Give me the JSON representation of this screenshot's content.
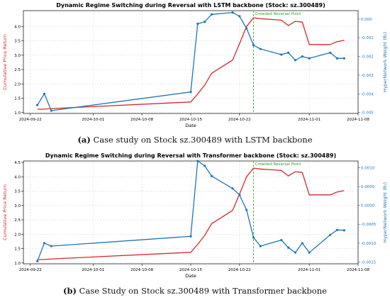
{
  "chart_data": [
    {
      "type": "line",
      "title": "Dynamic Regime Switching during Reversal with LSTM backbone (Stock: sz.300489)",
      "xlabel": "Date",
      "ylabel": "Cumulative Price Return",
      "y2label": "HyperNetwork Weight (θ₁)",
      "xlim": [
        "2024-09-21",
        "2024-11-08"
      ],
      "ylim": [
        0.97,
        4.55
      ],
      "y2lim": [
        -0.00505,
        0.00045
      ],
      "xticks": [
        "2024-09-22",
        "2024-10-01",
        "2024-10-08",
        "2024-10-15",
        "2024-10-22",
        "2024-11-01",
        "2024-11-08"
      ],
      "yticks": [
        "1.0",
        "1.5",
        "2.0",
        "2.5",
        "3.0",
        "3.5",
        "4.0"
      ],
      "y2ticks": [
        "0.000",
        "-0.001",
        "-0.002",
        "-0.003",
        "-0.004",
        "-0.005"
      ],
      "annotation": "Crowded Reversal Point",
      "annotation_x": "2024-10-24",
      "grid": true,
      "series": [
        {
          "axis": "left",
          "color": "#d62728",
          "x": [
            "2024-09-23",
            "2024-09-24",
            "2024-09-25",
            "2024-10-15",
            "2024-10-16",
            "2024-10-17",
            "2024-10-18",
            "2024-10-21",
            "2024-10-22",
            "2024-10-23",
            "2024-10-24",
            "2024-10-25",
            "2024-10-28",
            "2024-10-29",
            "2024-10-30",
            "2024-10-31",
            "2024-11-01",
            "2024-11-04",
            "2024-11-05",
            "2024-11-06"
          ],
          "values": [
            1.12,
            1.12,
            1.14,
            1.37,
            1.65,
            1.96,
            2.37,
            2.83,
            3.4,
            4.0,
            4.3,
            4.27,
            4.22,
            4.03,
            4.18,
            4.15,
            3.37,
            3.37,
            3.47,
            3.52
          ]
        },
        {
          "axis": "right",
          "color": "#1f77b4",
          "markers": true,
          "x": [
            "2024-09-23",
            "2024-09-24",
            "2024-09-25",
            "2024-10-15",
            "2024-10-16",
            "2024-10-17",
            "2024-10-18",
            "2024-10-21",
            "2024-10-22",
            "2024-10-23",
            "2024-10-24",
            "2024-10-25",
            "2024-10-28",
            "2024-10-29",
            "2024-10-30",
            "2024-10-31",
            "2024-11-01",
            "2024-11-04",
            "2024-11-05",
            "2024-11-06"
          ],
          "values": [
            -0.0046,
            -0.004,
            -0.0049,
            -0.0039,
            -0.00025,
            -0.00015,
            0.00025,
            0.00035,
            0.00015,
            -0.0005,
            -0.0014,
            -0.0016,
            -0.0019,
            -0.0018,
            -0.0022,
            -0.002,
            -0.0021,
            -0.0018,
            -0.0021,
            -0.0021
          ]
        }
      ]
    },
    {
      "type": "line",
      "title": "Dynamic Regime Switching during Reversal with Transformer backbone (Stock: sz.300489)",
      "xlabel": "Date",
      "ylabel": "Cumulative Price Return",
      "y2label": "HyperNetwork Weight (θ₁)",
      "xlim": [
        "2024-09-21",
        "2024-11-08"
      ],
      "ylim": [
        0.97,
        4.55
      ],
      "y2lim": [
        -0.00155,
        0.00118
      ],
      "xticks": [
        "2024-09-22",
        "2024-10-01",
        "2024-10-08",
        "2024-10-15",
        "2024-10-22",
        "2024-11-01",
        "2024-11-08"
      ],
      "yticks": [
        "1.0",
        "1.5",
        "2.0",
        "2.5",
        "3.0",
        "3.5",
        "4.0",
        "4.5"
      ],
      "y2ticks": [
        "0.0010",
        "0.0005",
        "0.0000",
        "-0.0005",
        "-0.0010",
        "-0.0015"
      ],
      "annotation": "Crowded Reversal Point",
      "annotation_x": "2024-10-24",
      "grid": true,
      "series": [
        {
          "axis": "left",
          "color": "#d62728",
          "x": [
            "2024-09-23",
            "2024-09-24",
            "2024-09-25",
            "2024-10-15",
            "2024-10-16",
            "2024-10-17",
            "2024-10-18",
            "2024-10-21",
            "2024-10-22",
            "2024-10-23",
            "2024-10-24",
            "2024-10-25",
            "2024-10-28",
            "2024-10-29",
            "2024-10-30",
            "2024-10-31",
            "2024-11-01",
            "2024-11-04",
            "2024-11-05",
            "2024-11-06"
          ],
          "values": [
            1.12,
            1.12,
            1.14,
            1.37,
            1.65,
            1.96,
            2.37,
            2.83,
            3.4,
            4.0,
            4.3,
            4.27,
            4.22,
            4.03,
            4.18,
            4.15,
            3.37,
            3.37,
            3.47,
            3.52
          ]
        },
        {
          "axis": "right",
          "color": "#1f77b4",
          "markers": true,
          "x": [
            "2024-09-23",
            "2024-09-24",
            "2024-09-25",
            "2024-10-15",
            "2024-10-16",
            "2024-10-17",
            "2024-10-18",
            "2024-10-21",
            "2024-10-22",
            "2024-10-23",
            "2024-10-24",
            "2024-10-25",
            "2024-10-28",
            "2024-10-29",
            "2024-10-30",
            "2024-10-31",
            "2024-11-01",
            "2024-11-04",
            "2024-11-05",
            "2024-11-06"
          ],
          "values": [
            -0.00148,
            -0.001,
            -0.00108,
            -0.00082,
            0.00118,
            0.00105,
            0.00078,
            0.00045,
            0.00028,
            -0.00012,
            -0.00085,
            -0.00108,
            -0.00092,
            -0.00112,
            -0.00125,
            -0.001,
            -0.00125,
            -0.00078,
            -0.00065,
            -0.00066
          ]
        }
      ]
    }
  ],
  "captions": [
    {
      "label": "(a)",
      "text": " Case study on Stock sz.300489 with LSTM backbone"
    },
    {
      "label": "(b)",
      "text": " Case Study on Stock sz.300489 with Transformer backbone"
    }
  ]
}
